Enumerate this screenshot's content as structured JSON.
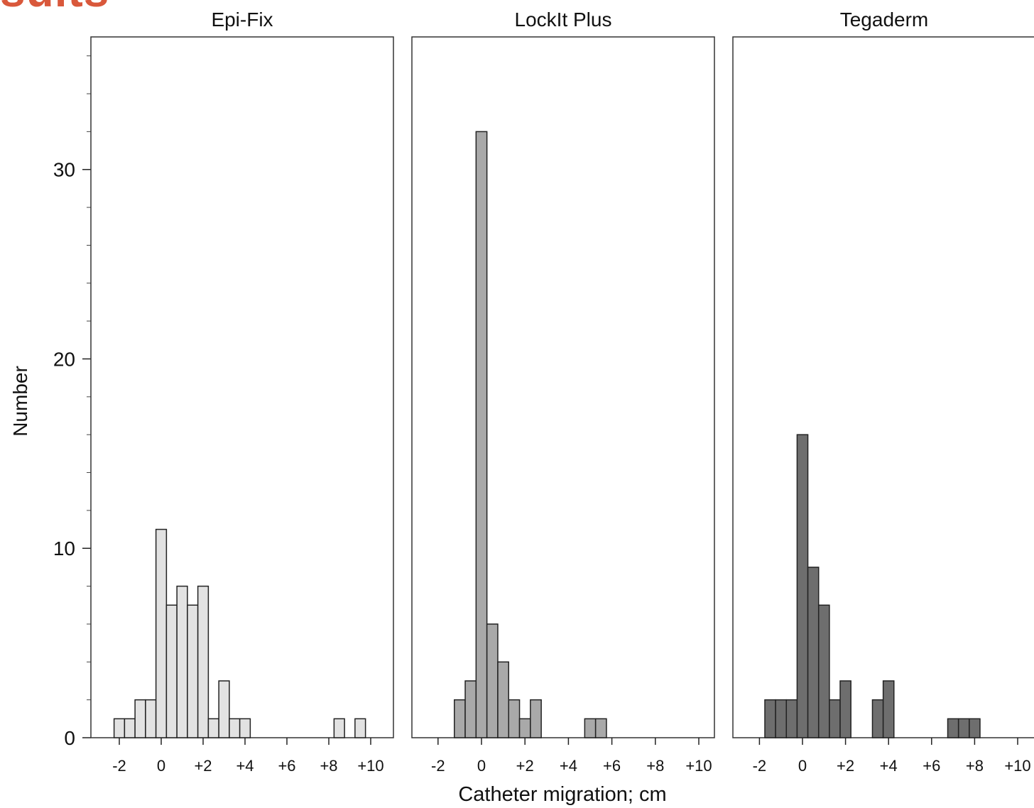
{
  "cropped_heading": "sults",
  "accent_color": "#d9583b",
  "chart_data": {
    "type": "bar",
    "layout": "faceted-histogram",
    "xlabel": "Catheter migration; cm",
    "ylabel": "Number",
    "ylim": [
      0,
      37
    ],
    "yticks": [
      0,
      10,
      20,
      30
    ],
    "ytick_labels": [
      "0",
      "10",
      "20",
      "30"
    ],
    "yminor_step": 2,
    "xlim": [
      -2.5,
      10.5
    ],
    "xticks": [
      -2,
      0,
      2,
      4,
      6,
      8,
      10
    ],
    "xtick_labels": [
      "-2",
      "0",
      "+2",
      "+4",
      "+6",
      "+8",
      "+10"
    ],
    "bin_width": 0.5,
    "grid": false,
    "panels": [
      {
        "title": "Epi-Fix",
        "color": "#e2e2e2",
        "bins": [
          {
            "x0": -2.25,
            "count": 1
          },
          {
            "x0": -1.75,
            "count": 1
          },
          {
            "x0": -1.25,
            "count": 2
          },
          {
            "x0": -0.75,
            "count": 2
          },
          {
            "x0": -0.25,
            "count": 11
          },
          {
            "x0": 0.25,
            "count": 7
          },
          {
            "x0": 0.75,
            "count": 8
          },
          {
            "x0": 1.25,
            "count": 7
          },
          {
            "x0": 1.75,
            "count": 8
          },
          {
            "x0": 2.25,
            "count": 1
          },
          {
            "x0": 2.75,
            "count": 3
          },
          {
            "x0": 3.25,
            "count": 1
          },
          {
            "x0": 3.75,
            "count": 1
          },
          {
            "x0": 8.25,
            "count": 1
          },
          {
            "x0": 9.25,
            "count": 1
          }
        ]
      },
      {
        "title": "LockIt Plus",
        "color": "#a9a9a9",
        "bins": [
          {
            "x0": -1.25,
            "count": 2
          },
          {
            "x0": -0.75,
            "count": 3
          },
          {
            "x0": -0.25,
            "count": 32
          },
          {
            "x0": 0.25,
            "count": 6
          },
          {
            "x0": 0.75,
            "count": 4
          },
          {
            "x0": 1.25,
            "count": 2
          },
          {
            "x0": 1.75,
            "count": 1
          },
          {
            "x0": 2.25,
            "count": 2
          },
          {
            "x0": 4.75,
            "count": 1
          },
          {
            "x0": 5.25,
            "count": 1
          }
        ]
      },
      {
        "title": "Tegaderm",
        "color": "#6e6e6e",
        "bins": [
          {
            "x0": -1.75,
            "count": 2
          },
          {
            "x0": -1.25,
            "count": 2
          },
          {
            "x0": -0.75,
            "count": 2
          },
          {
            "x0": -0.25,
            "count": 16
          },
          {
            "x0": 0.25,
            "count": 9
          },
          {
            "x0": 0.75,
            "count": 7
          },
          {
            "x0": 1.25,
            "count": 2
          },
          {
            "x0": 1.75,
            "count": 3
          },
          {
            "x0": 3.25,
            "count": 2
          },
          {
            "x0": 3.75,
            "count": 3
          },
          {
            "x0": 6.75,
            "count": 1
          },
          {
            "x0": 7.25,
            "count": 1
          },
          {
            "x0": 7.75,
            "count": 1
          }
        ]
      }
    ]
  }
}
